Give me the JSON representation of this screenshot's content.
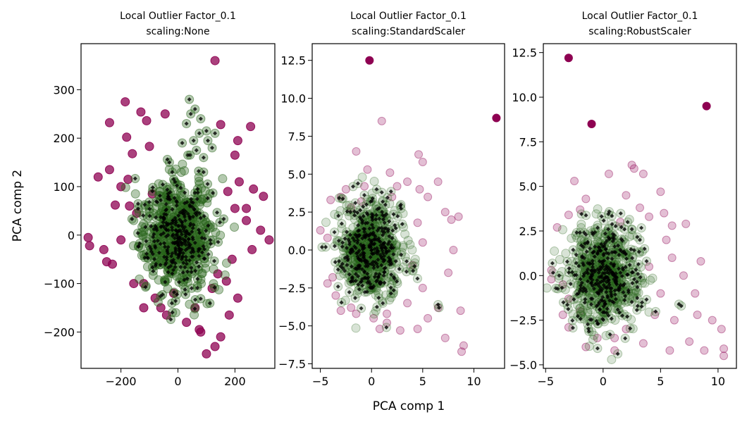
{
  "figure": {
    "xlabel": "PCA comp 1",
    "ylabel": "PCA comp 2"
  },
  "colors": {
    "outlier": "#8e0152",
    "inlier": "#276419",
    "marker": "#000000"
  },
  "chart_data": [
    {
      "type": "scatter",
      "title": [
        "Local Outlier Factor_0.1",
        "scaling:None"
      ],
      "xlim": [
        -340,
        340
      ],
      "ylim": [
        -275,
        395
      ],
      "xticks": [
        -200,
        0,
        200
      ],
      "xticklabels": [
        "−200",
        "0",
        "200"
      ],
      "yticks": [
        -200,
        -100,
        0,
        100,
        200,
        300
      ],
      "yticklabels": [
        "−200",
        "−100",
        "0",
        "100",
        "200",
        "300"
      ],
      "inlier_cluster": {
        "center": [
          0,
          0
        ],
        "spread": [
          60,
          55
        ]
      },
      "outliers": [
        [
          -185,
          275
        ],
        [
          -240,
          232
        ],
        [
          -180,
          202
        ],
        [
          -160,
          168
        ],
        [
          -130,
          254
        ],
        [
          -110,
          236
        ],
        [
          -100,
          183
        ],
        [
          -45,
          250
        ],
        [
          130,
          360
        ],
        [
          150,
          228
        ],
        [
          255,
          224
        ],
        [
          -315,
          -5
        ],
        [
          -310,
          -22
        ],
        [
          -280,
          120
        ],
        [
          -240,
          135
        ],
        [
          -260,
          -30
        ],
        [
          -250,
          -55
        ],
        [
          -220,
          62
        ],
        [
          -200,
          100
        ],
        [
          -175,
          115
        ],
        [
          -145,
          45
        ],
        [
          -200,
          -10
        ],
        [
          -230,
          -60
        ],
        [
          -155,
          -100
        ],
        [
          -120,
          -150
        ],
        [
          -80,
          -130
        ],
        [
          -40,
          -165
        ],
        [
          30,
          -180
        ],
        [
          80,
          -200
        ],
        [
          100,
          -245
        ],
        [
          130,
          -230
        ],
        [
          150,
          -210
        ],
        [
          180,
          -165
        ],
        [
          210,
          -130
        ],
        [
          170,
          -95
        ],
        [
          190,
          -50
        ],
        [
          260,
          -30
        ],
        [
          320,
          -10
        ],
        [
          290,
          10
        ],
        [
          240,
          30
        ],
        [
          200,
          55
        ],
        [
          175,
          90
        ],
        [
          215,
          110
        ],
        [
          265,
          95
        ],
        [
          300,
          80
        ],
        [
          240,
          55
        ],
        [
          200,
          165
        ],
        [
          210,
          195
        ],
        [
          75,
          -195
        ],
        [
          -60,
          -150
        ],
        [
          -15,
          -120
        ],
        [
          60,
          -150
        ],
        [
          120,
          -110
        ],
        [
          140,
          -80
        ],
        [
          -120,
          -100
        ],
        [
          -170,
          60
        ],
        [
          -90,
          85
        ]
      ],
      "inlier_extra": [
        [
          40,
          280
        ],
        [
          60,
          260
        ],
        [
          30,
          230
        ],
        [
          80,
          240
        ],
        [
          100,
          215
        ],
        [
          55,
          195
        ],
        [
          35,
          165
        ],
        [
          90,
          160
        ],
        [
          15,
          190
        ],
        [
          65,
          175
        ],
        [
          -30,
          150
        ],
        [
          105,
          195
        ],
        [
          75,
          210
        ],
        [
          45,
          250
        ],
        [
          130,
          210
        ],
        [
          120,
          180
        ],
        [
          -20,
          130
        ],
        [
          90,
          130
        ]
      ]
    },
    {
      "type": "scatter",
      "title": [
        "Local Outlier Factor_0.1",
        "scaling:StandardScaler"
      ],
      "xlim": [
        -5.8,
        13
      ],
      "ylim": [
        -7.8,
        13.6
      ],
      "xticks": [
        -5,
        0,
        5,
        10
      ],
      "xticklabels": [
        "−5",
        "0",
        "5",
        "10"
      ],
      "yticks": [
        -7.5,
        -5,
        -2.5,
        0,
        2.5,
        5,
        7.5,
        10,
        12.5
      ],
      "yticklabels": [
        "−7.5",
        "−5.0",
        "−2.5",
        "0.0",
        "2.5",
        "5.0",
        "7.5",
        "10.0",
        "12.5"
      ],
      "inlier_cluster": {
        "center": [
          0,
          0
        ],
        "spread": [
          1.5,
          1.5
        ]
      },
      "outliers_solid": [
        [
          -0.2,
          12.5
        ],
        [
          12.2,
          8.7
        ]
      ],
      "outliers": [
        [
          1,
          8.5
        ],
        [
          -1.5,
          6.5
        ],
        [
          4.6,
          6.3
        ],
        [
          5,
          5.8
        ],
        [
          -0.4,
          5.3
        ],
        [
          -0.7,
          4.2
        ],
        [
          -2.5,
          4
        ],
        [
          -3,
          3.5
        ],
        [
          -4,
          3.3
        ],
        [
          -5,
          1.3
        ],
        [
          -4.3,
          0.8
        ],
        [
          -3.8,
          -1.8
        ],
        [
          -4.3,
          -2.2
        ],
        [
          -3.5,
          -3
        ],
        [
          -3,
          -4
        ],
        [
          -2,
          -3.8
        ],
        [
          -1.5,
          -4.2
        ],
        [
          0.2,
          -4.5
        ],
        [
          0.8,
          -5.2
        ],
        [
          1.5,
          -4.8
        ],
        [
          2.8,
          -5.3
        ],
        [
          4.5,
          -5.2
        ],
        [
          5.5,
          -4.5
        ],
        [
          7.2,
          -5.8
        ],
        [
          9,
          -6.3
        ],
        [
          8.8,
          -6.7
        ],
        [
          8.7,
          -4
        ],
        [
          7.5,
          -1.5
        ],
        [
          8,
          0
        ],
        [
          8.5,
          2.2
        ],
        [
          7.2,
          2.5
        ],
        [
          6.5,
          4.5
        ],
        [
          5.5,
          3.5
        ],
        [
          4.7,
          4
        ],
        [
          3.5,
          4.5
        ],
        [
          2.5,
          4.2
        ],
        [
          1.8,
          5.1
        ],
        [
          5,
          0.5
        ],
        [
          5,
          -2.5
        ],
        [
          4,
          -1
        ],
        [
          3.5,
          -3.5
        ],
        [
          -2,
          2.8
        ],
        [
          2,
          3.5
        ],
        [
          -1,
          3.2
        ],
        [
          6.5,
          -3.8
        ],
        [
          4.5,
          1.8
        ],
        [
          1.5,
          -4.2
        ],
        [
          7.8,
          2
        ]
      ],
      "inlier_extra": [
        [
          6.6,
          -3.8
        ],
        [
          6.5,
          -3.6
        ],
        [
          0.5,
          4
        ],
        [
          1,
          3.8
        ],
        [
          -0.5,
          3
        ],
        [
          2.8,
          2.9
        ]
      ]
    },
    {
      "type": "scatter",
      "title": [
        "Local Outlier Factor_0.1",
        "scaling:RobustScaler"
      ],
      "xlim": [
        -5.2,
        11.6
      ],
      "ylim": [
        -5.2,
        13
      ],
      "xticks": [
        -5,
        0,
        5,
        10
      ],
      "xticklabels": [
        "−5",
        "0",
        "5",
        "10"
      ],
      "yticks": [
        -5,
        -2.5,
        0,
        2.5,
        5,
        7.5,
        10,
        12.5
      ],
      "yticklabels": [
        "−5.0",
        "−2.5",
        "0.0",
        "2.5",
        "5.0",
        "7.5",
        "10.0",
        "12.5"
      ],
      "inlier_cluster": {
        "center": [
          0,
          0
        ],
        "spread": [
          1.6,
          1.4
        ]
      },
      "outliers_solid": [
        [
          -3,
          12.2
        ],
        [
          -1,
          8.5
        ],
        [
          9,
          9.5
        ]
      ],
      "outliers": [
        [
          -2.5,
          5.3
        ],
        [
          0.5,
          5.7
        ],
        [
          2.5,
          6.2
        ],
        [
          3.5,
          5.7
        ],
        [
          2.7,
          6
        ],
        [
          5,
          4.7
        ],
        [
          5.3,
          3.5
        ],
        [
          4,
          3.3
        ],
        [
          3.2,
          3.8
        ],
        [
          2,
          4.5
        ],
        [
          -1.5,
          4.3
        ],
        [
          -2,
          3.7
        ],
        [
          -3,
          3.4
        ],
        [
          -4,
          2.7
        ],
        [
          -4.5,
          0.3
        ],
        [
          -3.5,
          -0.5
        ],
        [
          -3,
          -1.3
        ],
        [
          -3.5,
          -2.2
        ],
        [
          -3,
          -2.9
        ],
        [
          -1.5,
          -4
        ],
        [
          -0.5,
          -3.5
        ],
        [
          1,
          -3.5
        ],
        [
          3.5,
          -3.8
        ],
        [
          5.8,
          -4.2
        ],
        [
          7.5,
          -3.7
        ],
        [
          8.8,
          -4.2
        ],
        [
          10.5,
          -4.1
        ],
        [
          10.3,
          -3
        ],
        [
          9.5,
          -2.5
        ],
        [
          8,
          -1
        ],
        [
          7,
          0
        ],
        [
          6,
          1
        ],
        [
          5.5,
          2
        ],
        [
          6,
          2.8
        ],
        [
          7.2,
          2.9
        ],
        [
          8.5,
          0.8
        ],
        [
          5,
          -1
        ],
        [
          4,
          0.5
        ],
        [
          4.5,
          -2.2
        ],
        [
          6.2,
          -2.5
        ],
        [
          2,
          -3
        ],
        [
          -2,
          -2
        ],
        [
          -4.5,
          -0.2
        ],
        [
          1.5,
          3
        ],
        [
          8.2,
          -2.2
        ],
        [
          10.5,
          -4.5
        ],
        [
          1,
          -4.2
        ]
      ],
      "inlier_extra": [
        [
          6.8,
          -1.7
        ],
        [
          6.6,
          -1.6
        ],
        [
          -1.5,
          2.3
        ],
        [
          2.5,
          2.6
        ],
        [
          3.2,
          2
        ],
        [
          3,
          -1.7
        ]
      ]
    }
  ]
}
